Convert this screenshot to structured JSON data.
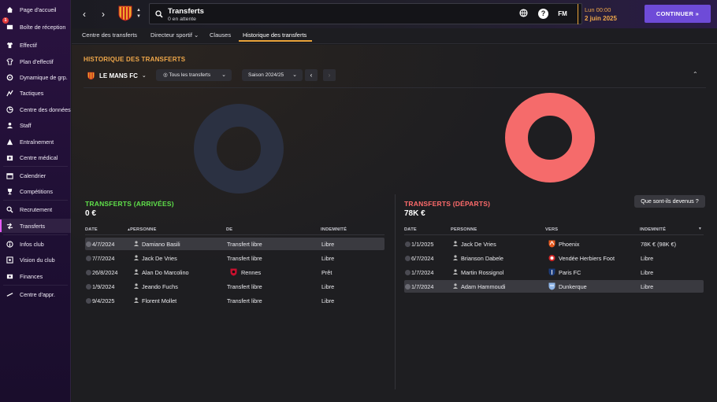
{
  "sidebar": {
    "inbox_badge": "1",
    "items": [
      {
        "label": "Page d'accueil",
        "icon": "home-icon"
      },
      {
        "label": "Boîte de réception",
        "icon": "inbox-icon"
      },
      {
        "label": "Effectif",
        "icon": "shirt-icon"
      },
      {
        "label": "Plan d'effectif",
        "icon": "squad-plan-icon"
      },
      {
        "label": "Dynamique de grp.",
        "icon": "dynamics-icon"
      },
      {
        "label": "Tactiques",
        "icon": "tactics-icon"
      },
      {
        "label": "Centre des données",
        "icon": "data-hub-icon"
      },
      {
        "label": "Staff",
        "icon": "staff-icon"
      },
      {
        "label": "Entraînement",
        "icon": "training-icon"
      },
      {
        "label": "Centre médical",
        "icon": "medical-icon"
      },
      {
        "label": "Calendrier",
        "icon": "calendar-icon"
      },
      {
        "label": "Compétitions",
        "icon": "trophy-icon"
      },
      {
        "label": "Recrutement",
        "icon": "scouting-icon"
      },
      {
        "label": "Transferts",
        "icon": "transfers-icon"
      },
      {
        "label": "Infos club",
        "icon": "club-info-icon"
      },
      {
        "label": "Vision du club",
        "icon": "club-vision-icon"
      },
      {
        "label": "Finances",
        "icon": "finances-icon"
      },
      {
        "label": "Centre d'appr.",
        "icon": "dev-centre-icon"
      }
    ]
  },
  "header": {
    "title": "Transferts",
    "subtitle": "0 en attente",
    "date_time": "Lun 00:00",
    "date": "2 juin 2025",
    "help_label": "?",
    "fm_label": "FM",
    "continue_label": "CONTINUER"
  },
  "tabs": [
    {
      "label": "Centre des transferts"
    },
    {
      "label": "Directeur sportif"
    },
    {
      "label": "Clauses"
    },
    {
      "label": "Historique des transferts"
    }
  ],
  "page": {
    "section_title": "HISTORIQUE DES TRANSFERTS",
    "club": "LE MANS FC",
    "filter": "Tous les transferts",
    "season": "Saison 2024/25",
    "devenus_button": "Que sont-ils devenus ?"
  },
  "arrivals": {
    "title": "TRANSFERTS (ARRIVÉES)",
    "total": "0 €",
    "columns": {
      "date": "DATE",
      "person": "PERSONNE",
      "from": "DE",
      "fee": "INDEMNITÉ"
    },
    "rows": [
      {
        "date": "4/7/2024",
        "person": "Damiano Basili",
        "club": "Transfert libre",
        "fee": "Libre"
      },
      {
        "date": "7/7/2024",
        "person": "Jack De Vries",
        "club": "Transfert libre",
        "fee": "Libre"
      },
      {
        "date": "26/8/2024",
        "person": "Alan Do Marcolino",
        "club": "Rennes",
        "fee": "Prêt"
      },
      {
        "date": "1/9/2024",
        "person": "Jeando Fuchs",
        "club": "Transfert libre",
        "fee": "Libre"
      },
      {
        "date": "9/4/2025",
        "person": "Florent Mollet",
        "club": "Transfert libre",
        "fee": "Libre"
      }
    ]
  },
  "departures": {
    "title": "TRANSFERTS (DÉPARTS)",
    "total": "78K €",
    "columns": {
      "date": "DATE",
      "person": "PERSONNE",
      "to": "VERS",
      "fee": "INDEMNITÉ"
    },
    "rows": [
      {
        "date": "1/1/2025",
        "person": "Jack De Vries",
        "club": "Phoenix",
        "fee": "78K € (98K €)"
      },
      {
        "date": "6/7/2024",
        "person": "Brianson Dabele",
        "club": "Vendée Herbiers Foot",
        "fee": "Libre"
      },
      {
        "date": "1/7/2024",
        "person": "Martin Rossignol",
        "club": "Paris FC",
        "fee": "Libre"
      },
      {
        "date": "1/7/2024",
        "person": "Adam Hammoudi",
        "club": "Dunkerque",
        "fee": "Libre"
      }
    ]
  },
  "colors": {
    "accent": "#f0a84a",
    "arrivals_title": "#5fe04a",
    "departures_title": "#ff6b6b",
    "arrivals_donut": "#2b3142",
    "departures_donut": "#f56b6b",
    "continue_button": "#6e4bd8"
  }
}
